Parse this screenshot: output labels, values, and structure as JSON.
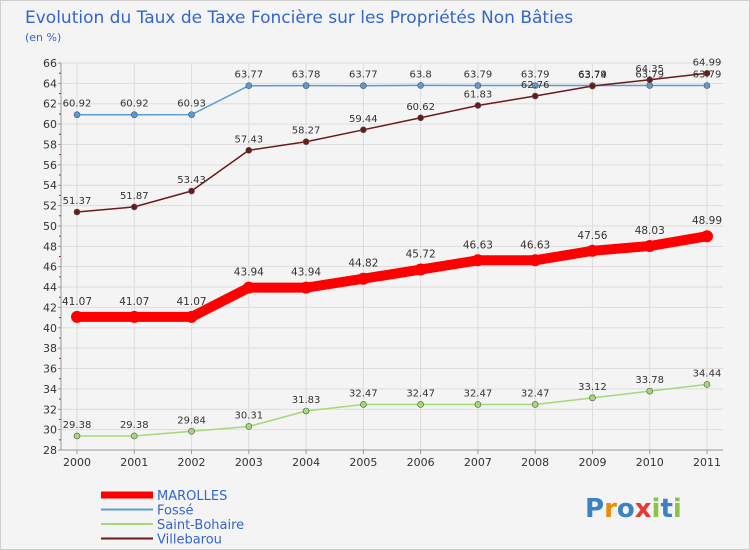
{
  "chart_data": {
    "type": "line",
    "title": "Evolution du Taux de Taxe Foncière sur les Propriétés Non Bâties",
    "subtitle": "(en %)",
    "xlabel": "",
    "ylabel": "",
    "x": [
      "2000",
      "2001",
      "2002",
      "2003",
      "2004",
      "2005",
      "2006",
      "2007",
      "2008",
      "2009",
      "2010",
      "2011"
    ],
    "ylim": [
      28,
      66
    ],
    "yticks": [
      28,
      30,
      32,
      34,
      36,
      38,
      40,
      42,
      44,
      46,
      48,
      50,
      52,
      54,
      56,
      58,
      60,
      62,
      64,
      66
    ],
    "grid": true,
    "series": [
      {
        "name": "Fossé",
        "color": "#5b9bd5",
        "values": [
          60.92,
          60.92,
          60.93,
          63.77,
          63.78,
          63.77,
          63.8,
          63.79,
          63.79,
          63.79,
          63.79,
          63.79
        ]
      },
      {
        "name": "Villebarou",
        "color": "#6b1a1a",
        "values": [
          51.37,
          51.87,
          53.43,
          57.43,
          58.27,
          59.44,
          60.62,
          61.83,
          62.76,
          63.74,
          64.35,
          64.99
        ]
      },
      {
        "name": "Saint-Bohaire",
        "color": "#a3d977",
        "values": [
          29.38,
          29.38,
          29.84,
          30.31,
          31.83,
          32.47,
          32.47,
          32.47,
          32.47,
          33.12,
          33.78,
          34.44
        ]
      },
      {
        "name": "MAROLLES",
        "color": "#ff0000",
        "values": [
          41.07,
          41.07,
          41.07,
          43.94,
          43.94,
          44.82,
          45.72,
          46.63,
          46.63,
          47.56,
          48.03,
          48.99
        ]
      }
    ],
    "legend": {
      "placement": "bottom-left",
      "items": [
        {
          "name": "MAROLLES",
          "color": "#ff0000"
        },
        {
          "name": "Fossé",
          "color": "#5b9bd5"
        },
        {
          "name": "Saint-Bohaire",
          "color": "#a3d977"
        },
        {
          "name": "Villebarou",
          "color": "#6b1a1a"
        }
      ]
    },
    "logo": {
      "text": "Proxiti",
      "letters": [
        "P",
        "r",
        "o",
        "x",
        "i",
        "t",
        "i"
      ],
      "colors": [
        "#3b82c4",
        "#f08a00",
        "#3b82c4",
        "#e53935",
        "#8bc34a",
        "#3b82c4",
        "#8bc34a"
      ]
    }
  }
}
